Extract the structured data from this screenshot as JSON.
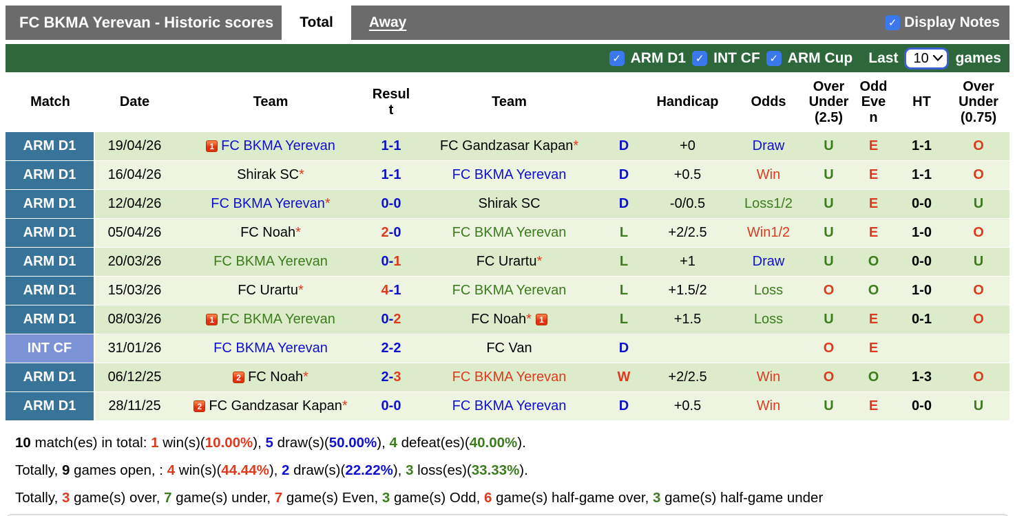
{
  "title_bar": {
    "title": "FC BKMA Yerevan - Historic scores",
    "tabs": [
      {
        "label": "Total",
        "active": true
      },
      {
        "label": "Away",
        "active": false
      }
    ],
    "display_notes_label": "Display Notes",
    "display_notes_checked": true
  },
  "filter_bar": {
    "leagues": [
      {
        "label": "ARM D1",
        "checked": true
      },
      {
        "label": "INT CF",
        "checked": true
      },
      {
        "label": "ARM Cup",
        "checked": true
      }
    ],
    "last_label": "Last",
    "games_count": "10",
    "games_label": "games"
  },
  "table": {
    "headers": {
      "match": "Match",
      "date": "Date",
      "home": "Team",
      "result": "Result",
      "away": "Team",
      "handicap": "Handicap",
      "odds": "Odds",
      "ou25": "Over Under (2.5)",
      "oddeven": "Odd Even",
      "ht": "HT",
      "ou075": "Over Under (0.75)"
    },
    "rows": [
      {
        "league": "ARM D1",
        "league_style": "arm",
        "date": "19/04/26",
        "home": {
          "badge": "1",
          "name": "FC BKMA Yerevan",
          "star": false,
          "color": "blue"
        },
        "score": {
          "home": "1",
          "away": "1",
          "home_color": "blue",
          "away_color": "blue"
        },
        "away": {
          "name": "FC Gandzasar Kapan",
          "star": true,
          "color": "black"
        },
        "wdl": {
          "text": "D",
          "color": "blue"
        },
        "handicap": "+0",
        "odds": {
          "text": "Draw",
          "color": "blue"
        },
        "ou25": {
          "text": "U",
          "color": "green"
        },
        "oddeven": {
          "text": "E",
          "color": "red"
        },
        "ht": "1-1",
        "ou075": {
          "text": "O",
          "color": "red"
        }
      },
      {
        "league": "ARM D1",
        "league_style": "arm",
        "date": "16/04/26",
        "home": {
          "name": "Shirak SC",
          "star": true,
          "color": "black"
        },
        "score": {
          "home": "1",
          "away": "1",
          "home_color": "blue",
          "away_color": "blue"
        },
        "away": {
          "name": "FC BKMA Yerevan",
          "star": false,
          "color": "blue"
        },
        "wdl": {
          "text": "D",
          "color": "blue"
        },
        "handicap": "+0.5",
        "odds": {
          "text": "Win",
          "color": "red"
        },
        "ou25": {
          "text": "U",
          "color": "green"
        },
        "oddeven": {
          "text": "E",
          "color": "red"
        },
        "ht": "1-1",
        "ou075": {
          "text": "O",
          "color": "red"
        }
      },
      {
        "league": "ARM D1",
        "league_style": "arm",
        "date": "12/04/26",
        "home": {
          "name": "FC BKMA Yerevan",
          "star": true,
          "color": "blue"
        },
        "score": {
          "home": "0",
          "away": "0",
          "home_color": "blue",
          "away_color": "blue"
        },
        "away": {
          "name": "Shirak SC",
          "star": false,
          "color": "black"
        },
        "wdl": {
          "text": "D",
          "color": "blue"
        },
        "handicap": "-0/0.5",
        "odds": {
          "text": "Loss1/2",
          "color": "green"
        },
        "ou25": {
          "text": "U",
          "color": "green"
        },
        "oddeven": {
          "text": "E",
          "color": "red"
        },
        "ht": "0-0",
        "ou075": {
          "text": "U",
          "color": "green"
        }
      },
      {
        "league": "ARM D1",
        "league_style": "arm",
        "date": "05/04/26",
        "home": {
          "name": "FC Noah",
          "star": true,
          "color": "black"
        },
        "score": {
          "home": "2",
          "away": "0",
          "home_color": "red",
          "away_color": "blue"
        },
        "away": {
          "name": "FC BKMA Yerevan",
          "star": false,
          "color": "green"
        },
        "wdl": {
          "text": "L",
          "color": "green"
        },
        "handicap": "+2/2.5",
        "odds": {
          "text": "Win1/2",
          "color": "red"
        },
        "ou25": {
          "text": "U",
          "color": "green"
        },
        "oddeven": {
          "text": "E",
          "color": "red"
        },
        "ht": "1-0",
        "ou075": {
          "text": "O",
          "color": "red"
        }
      },
      {
        "league": "ARM D1",
        "league_style": "arm",
        "date": "20/03/26",
        "home": {
          "name": "FC BKMA Yerevan",
          "star": false,
          "color": "green"
        },
        "score": {
          "home": "0",
          "away": "1",
          "home_color": "blue",
          "away_color": "red"
        },
        "away": {
          "name": "FC Urartu",
          "star": true,
          "color": "black"
        },
        "wdl": {
          "text": "L",
          "color": "green"
        },
        "handicap": "+1",
        "odds": {
          "text": "Draw",
          "color": "blue"
        },
        "ou25": {
          "text": "U",
          "color": "green"
        },
        "oddeven": {
          "text": "O",
          "color": "green"
        },
        "ht": "0-0",
        "ou075": {
          "text": "U",
          "color": "green"
        }
      },
      {
        "league": "ARM D1",
        "league_style": "arm",
        "date": "15/03/26",
        "home": {
          "name": "FC Urartu",
          "star": true,
          "color": "black"
        },
        "score": {
          "home": "4",
          "away": "1",
          "home_color": "red",
          "away_color": "blue"
        },
        "away": {
          "name": "FC BKMA Yerevan",
          "star": false,
          "color": "green"
        },
        "wdl": {
          "text": "L",
          "color": "green"
        },
        "handicap": "+1.5/2",
        "odds": {
          "text": "Loss",
          "color": "green"
        },
        "ou25": {
          "text": "O",
          "color": "red"
        },
        "oddeven": {
          "text": "O",
          "color": "green"
        },
        "ht": "1-0",
        "ou075": {
          "text": "O",
          "color": "red"
        }
      },
      {
        "league": "ARM D1",
        "league_style": "arm",
        "date": "08/03/26",
        "home": {
          "badge": "1",
          "name": "FC BKMA Yerevan",
          "star": false,
          "color": "green"
        },
        "score": {
          "home": "0",
          "away": "2",
          "home_color": "blue",
          "away_color": "red"
        },
        "away": {
          "name": "FC Noah",
          "star": true,
          "color": "black",
          "badge_after": "1"
        },
        "wdl": {
          "text": "L",
          "color": "green"
        },
        "handicap": "+1.5",
        "odds": {
          "text": "Loss",
          "color": "green"
        },
        "ou25": {
          "text": "U",
          "color": "green"
        },
        "oddeven": {
          "text": "E",
          "color": "red"
        },
        "ht": "0-1",
        "ou075": {
          "text": "O",
          "color": "red"
        }
      },
      {
        "league": "INT CF",
        "league_style": "int",
        "date": "31/01/26",
        "home": {
          "name": "FC BKMA Yerevan",
          "star": false,
          "color": "blue"
        },
        "score": {
          "home": "2",
          "away": "2",
          "home_color": "blue",
          "away_color": "blue"
        },
        "away": {
          "name": "FC Van",
          "star": false,
          "color": "black"
        },
        "wdl": {
          "text": "D",
          "color": "blue"
        },
        "handicap": "",
        "odds": {
          "text": "",
          "color": "black"
        },
        "ou25": {
          "text": "O",
          "color": "red"
        },
        "oddeven": {
          "text": "E",
          "color": "red"
        },
        "ht": "",
        "ou075": {
          "text": "",
          "color": "black"
        }
      },
      {
        "league": "ARM D1",
        "league_style": "arm",
        "date": "06/12/25",
        "home": {
          "badge": "2",
          "name": "FC Noah",
          "star": true,
          "color": "black"
        },
        "score": {
          "home": "2",
          "away": "3",
          "home_color": "blue",
          "away_color": "red"
        },
        "away": {
          "name": "FC BKMA Yerevan",
          "star": false,
          "color": "red"
        },
        "wdl": {
          "text": "W",
          "color": "red"
        },
        "handicap": "+2/2.5",
        "odds": {
          "text": "Win",
          "color": "red"
        },
        "ou25": {
          "text": "O",
          "color": "red"
        },
        "oddeven": {
          "text": "O",
          "color": "green"
        },
        "ht": "1-3",
        "ou075": {
          "text": "O",
          "color": "red"
        }
      },
      {
        "league": "ARM D1",
        "league_style": "arm",
        "date": "28/11/25",
        "home": {
          "badge": "2",
          "name": "FC Gandzasar Kapan",
          "star": true,
          "color": "black"
        },
        "score": {
          "home": "0",
          "away": "0",
          "home_color": "blue",
          "away_color": "blue"
        },
        "away": {
          "name": "FC BKMA Yerevan",
          "star": false,
          "color": "blue"
        },
        "wdl": {
          "text": "D",
          "color": "blue"
        },
        "handicap": "+0.5",
        "odds": {
          "text": "Win",
          "color": "red"
        },
        "ou25": {
          "text": "U",
          "color": "green"
        },
        "oddeven": {
          "text": "E",
          "color": "red"
        },
        "ht": "0-0",
        "ou075": {
          "text": "U",
          "color": "green"
        }
      }
    ]
  },
  "summary": {
    "lines": [
      [
        {
          "t": "10",
          "b": 1,
          "c": "black"
        },
        {
          "t": " match(es) in total: "
        },
        {
          "t": "1",
          "b": 1,
          "c": "red"
        },
        {
          "t": " win(s)("
        },
        {
          "t": "10.00%",
          "b": 1,
          "c": "red"
        },
        {
          "t": "), "
        },
        {
          "t": "5",
          "b": 1,
          "c": "blue"
        },
        {
          "t": " draw(s)("
        },
        {
          "t": "50.00%",
          "b": 1,
          "c": "blue"
        },
        {
          "t": "), "
        },
        {
          "t": "4",
          "b": 1,
          "c": "green"
        },
        {
          "t": " defeat(es)("
        },
        {
          "t": "40.00%",
          "b": 1,
          "c": "green"
        },
        {
          "t": ")."
        }
      ],
      [
        {
          "t": "Totally, "
        },
        {
          "t": "9",
          "b": 1,
          "c": "black"
        },
        {
          "t": " games open, : "
        },
        {
          "t": "4",
          "b": 1,
          "c": "red"
        },
        {
          "t": " win(s)("
        },
        {
          "t": "44.44%",
          "b": 1,
          "c": "red"
        },
        {
          "t": "), "
        },
        {
          "t": "2",
          "b": 1,
          "c": "blue"
        },
        {
          "t": " draw(s)("
        },
        {
          "t": "22.22%",
          "b": 1,
          "c": "blue"
        },
        {
          "t": "), "
        },
        {
          "t": "3",
          "b": 1,
          "c": "green"
        },
        {
          "t": " loss(es)("
        },
        {
          "t": "33.33%",
          "b": 1,
          "c": "green"
        },
        {
          "t": ")."
        }
      ],
      [
        {
          "t": "Totally, "
        },
        {
          "t": "3",
          "b": 1,
          "c": "red"
        },
        {
          "t": " game(s) over, "
        },
        {
          "t": "7",
          "b": 1,
          "c": "green"
        },
        {
          "t": " game(s) under, "
        },
        {
          "t": "7",
          "b": 1,
          "c": "red"
        },
        {
          "t": " game(s) Even, "
        },
        {
          "t": "3",
          "b": 1,
          "c": "green"
        },
        {
          "t": " game(s) Odd, "
        },
        {
          "t": "6",
          "b": 1,
          "c": "red"
        },
        {
          "t": " game(s) half-game over, "
        },
        {
          "t": "3",
          "b": 1,
          "c": "green"
        },
        {
          "t": " game(s) half-game under"
        }
      ]
    ]
  },
  "colors": {
    "blue": "#0f10cf",
    "red": "#dd3a20",
    "green": "#3c7c1e",
    "bar_gray": "#6b6b6b",
    "bar_green": "#2d673a",
    "match_arm_bg": "#38749a",
    "match_int_bg": "#7b93d6",
    "row_odd_bg": "#dcecca",
    "row_even_bg": "#edf5e1",
    "checkbox_blue": "#3b78ed"
  }
}
